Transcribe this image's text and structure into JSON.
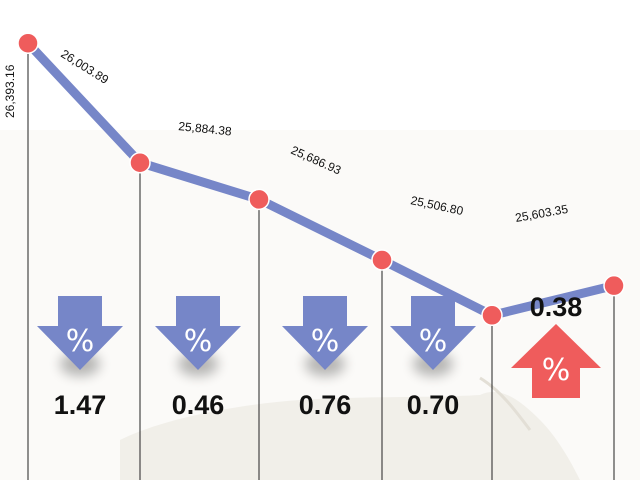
{
  "chart_data": {
    "type": "line",
    "title": "",
    "xlabel": "",
    "ylabel": "",
    "ylim": [
      25300,
      26500
    ],
    "grid": false,
    "legend": "none",
    "series": [
      {
        "values": [
          26393.16,
          26003.89,
          25884.38,
          25686.93,
          25506.8,
          25603.35
        ],
        "value_labels": [
          "26,393.16",
          "26,003.89",
          "25,884.38",
          "25,686.93",
          "25,506.80",
          "25,603.35"
        ]
      }
    ],
    "changes": [
      {
        "direction": "down",
        "label": "1.47",
        "symbol": "%"
      },
      {
        "direction": "down",
        "label": "0.46",
        "symbol": "%"
      },
      {
        "direction": "down",
        "label": "0.76",
        "symbol": "%"
      },
      {
        "direction": "down",
        "label": "0.70",
        "symbol": "%"
      },
      {
        "direction": "up",
        "label": "0.38",
        "symbol": "%"
      }
    ],
    "colors": {
      "line": "#7686c8",
      "marker": "#ef5c5c",
      "down_arrow": "#7686c8",
      "up_arrow": "#ef5c5c",
      "vline": "#222222"
    }
  }
}
